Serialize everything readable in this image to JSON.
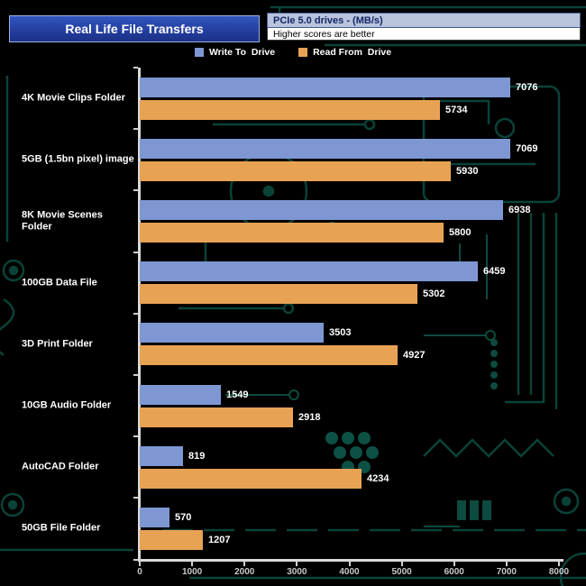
{
  "header": {
    "title": "Real Life File Transfers",
    "drive_info": "PCIe 5.0 drives - (MB/s)",
    "note": "Higher scores are better"
  },
  "legend": [
    {
      "label": "Write To  Drive",
      "color": "#7e97d3"
    },
    {
      "label": "Read From  Drive",
      "color": "#e8a254"
    }
  ],
  "chart_data": {
    "type": "bar",
    "orientation": "horizontal",
    "title": "Real Life File Transfers",
    "subtitle": "PCIe 5.0 drives - (MB/s)",
    "note": "Higher scores are better",
    "categories": [
      "4K Movie Clips Folder",
      "5GB (1.5bn pixel) image",
      "8K Movie Scenes Folder",
      "100GB Data File",
      "3D Print Folder",
      "10GB Audio Folder",
      "AutoCAD Folder",
      "50GB File Folder"
    ],
    "series": [
      {
        "name": "Write To Drive",
        "color": "#7e97d3",
        "values": [
          7076,
          7069,
          6938,
          6459,
          3503,
          1549,
          819,
          570
        ]
      },
      {
        "name": "Read From Drive",
        "color": "#e8a254",
        "values": [
          5734,
          5930,
          5800,
          5302,
          4927,
          2918,
          4234,
          1207
        ]
      }
    ],
    "xlim": [
      0,
      8000
    ],
    "x_ticks": [
      0,
      1000,
      2000,
      3000,
      4000,
      5000,
      6000,
      7000,
      8000
    ],
    "value_labels": true,
    "legend_position": "top",
    "grid": false
  },
  "colors": {
    "background": "#000000",
    "axis": "#d9d9d9",
    "tick_text": "#c8c8c8",
    "circuit": "#0d4f43",
    "title_box": "#2a4fb4"
  }
}
